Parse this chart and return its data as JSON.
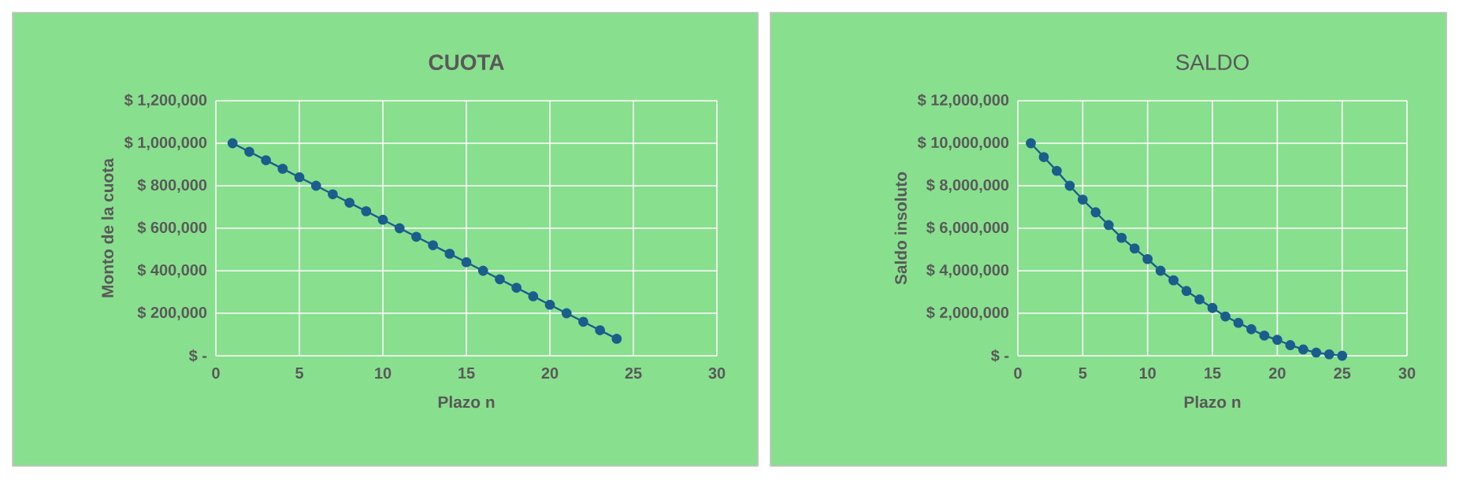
{
  "chart_data": [
    {
      "type": "line",
      "title": "CUOTA",
      "xlabel": "Plazo n",
      "ylabel": "Monto de la cuota",
      "color": "#1b5e8c",
      "marker": "circle",
      "line_style": "solid",
      "grid": true,
      "x": [
        1,
        2,
        3,
        4,
        5,
        6,
        7,
        8,
        9,
        10,
        11,
        12,
        13,
        14,
        15,
        16,
        17,
        18,
        19,
        20,
        21,
        22,
        23,
        24
      ],
      "values": [
        1000000,
        960000,
        920000,
        880000,
        840000,
        800000,
        760000,
        720000,
        680000,
        640000,
        600000,
        560000,
        520000,
        480000,
        440000,
        400000,
        360000,
        320000,
        280000,
        240000,
        200000,
        160000,
        120000,
        80000
      ],
      "xlim": [
        0,
        30
      ],
      "xticks": [
        0,
        5,
        10,
        15,
        20,
        25,
        30
      ],
      "ylim": [
        0,
        1200000
      ],
      "yticks": [
        {
          "value": 0,
          "label": "$ -"
        },
        {
          "value": 200000,
          "label": "$ 200,000"
        },
        {
          "value": 400000,
          "label": "$ 400,000"
        },
        {
          "value": 600000,
          "label": "$ 600,000"
        },
        {
          "value": 800000,
          "label": "$ 800,000"
        },
        {
          "value": 1000000,
          "label": "$ 1,000,000"
        },
        {
          "value": 1200000,
          "label": "$ 1,200,000"
        }
      ]
    },
    {
      "type": "line",
      "title": "SALDO",
      "xlabel": "Plazo n",
      "ylabel": "Saldo insoluto",
      "color": "#1b5e8c",
      "marker": "circle",
      "line_style": "solid",
      "grid": true,
      "x": [
        1,
        2,
        3,
        4,
        5,
        6,
        7,
        8,
        9,
        10,
        11,
        12,
        13,
        14,
        15,
        16,
        17,
        18,
        19,
        20,
        21,
        22,
        23,
        24,
        25
      ],
      "values": [
        10000000,
        9350000,
        8700000,
        8000000,
        7350000,
        6750000,
        6150000,
        5550000,
        5050000,
        4550000,
        4000000,
        3550000,
        3050000,
        2650000,
        2250000,
        1850000,
        1550000,
        1250000,
        950000,
        750000,
        500000,
        300000,
        150000,
        70000,
        0
      ],
      "xlim": [
        0,
        30
      ],
      "xticks": [
        0,
        5,
        10,
        15,
        20,
        25,
        30
      ],
      "ylim": [
        0,
        12000000
      ],
      "yticks": [
        {
          "value": 0,
          "label": "$ -"
        },
        {
          "value": 2000000,
          "label": "$ 2,000,000"
        },
        {
          "value": 4000000,
          "label": "$ 4,000,000"
        },
        {
          "value": 6000000,
          "label": "$ 6,000,000"
        },
        {
          "value": 8000000,
          "label": "$ 8,000,000"
        },
        {
          "value": 10000000,
          "label": "$ 10,000,000"
        },
        {
          "value": 12000000,
          "label": "$ 12,000,000"
        }
      ]
    }
  ]
}
